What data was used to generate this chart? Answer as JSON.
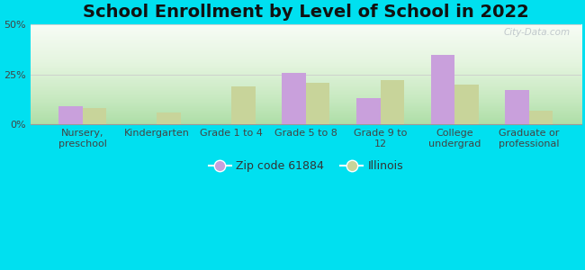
{
  "title": "School Enrollment by Level of School in 2022",
  "categories": [
    "Nursery,\npreschool",
    "Kindergarten",
    "Grade 1 to 4",
    "Grade 5 to 8",
    "Grade 9 to\n12",
    "College\nundergrad",
    "Graduate or\nprofessional"
  ],
  "zip_values": [
    9.0,
    0.0,
    0.0,
    26.0,
    13.0,
    35.0,
    17.0
  ],
  "il_values": [
    8.0,
    6.0,
    19.0,
    21.0,
    22.0,
    20.0,
    7.0
  ],
  "zip_color": "#c9a0dc",
  "il_color": "#c8d49a",
  "background_outer": "#00e0f0",
  "ylim": [
    0,
    50
  ],
  "yticks": [
    0,
    25,
    50
  ],
  "ytick_labels": [
    "0%",
    "25%",
    "50%"
  ],
  "legend_zip_label": "Zip code 61884",
  "legend_il_label": "Illinois",
  "watermark": "City-Data.com",
  "title_fontsize": 14,
  "tick_fontsize": 8,
  "legend_fontsize": 9,
  "bar_width": 0.32
}
